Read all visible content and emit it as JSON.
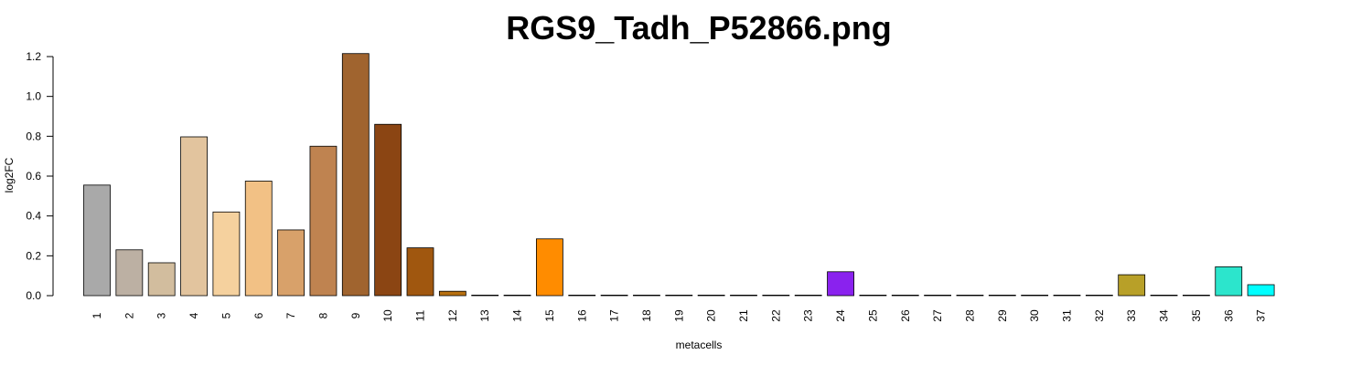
{
  "chart_data": {
    "type": "bar",
    "title": "RGS9_Tadh_P52866.png",
    "xlabel": "metacells",
    "ylabel": "log2FC",
    "ylim": [
      0,
      1.2
    ],
    "yticks": [
      "0.0",
      "0.2",
      "0.4",
      "0.6",
      "0.8",
      "1.0",
      "1.2"
    ],
    "grid": false,
    "legend": "none",
    "categories": [
      "1",
      "2",
      "3",
      "4",
      "5",
      "6",
      "7",
      "8",
      "9",
      "10",
      "11",
      "12",
      "13",
      "14",
      "15",
      "16",
      "17",
      "18",
      "19",
      "20",
      "21",
      "22",
      "23",
      "24",
      "25",
      "26",
      "27",
      "28",
      "29",
      "30",
      "31",
      "32",
      "33",
      "34",
      "35",
      "36",
      "37"
    ],
    "values": [
      0.555,
      0.23,
      0.165,
      0.797,
      0.42,
      0.575,
      0.33,
      0.75,
      1.215,
      0.86,
      0.24,
      0.022,
      0,
      0,
      0.285,
      0,
      0,
      0,
      0,
      0,
      0,
      0,
      0,
      0.12,
      0,
      0,
      0,
      0,
      0,
      0,
      0,
      0,
      0.105,
      0,
      0,
      0.145,
      0.055
    ],
    "colors": [
      "#A9A9A9",
      "#BCB0A3",
      "#D2BD9E",
      "#E2C49E",
      "#F5D19E",
      "#F2C185",
      "#D8A16A",
      "#BF8350",
      "#A0642F",
      "#8B4513",
      "#A0570F",
      "#B8700F",
      "#CC7F00",
      "#E08A00",
      "#FF8C00",
      "#C8A030",
      "#B4A030",
      "#A0A030",
      "#909828",
      "#8C9030",
      "#9028C8",
      "#8A22E0",
      "#8A20E8",
      "#8A22EE",
      "#909828",
      "#9AA030",
      "#A8A432",
      "#B0A030",
      "#B4A02C",
      "#B6A02A",
      "#B8A02A",
      "#B9A028",
      "#B8A028",
      "#40E0C0",
      "#34E0C8",
      "#2CE5CC",
      "#00FFFF"
    ]
  }
}
